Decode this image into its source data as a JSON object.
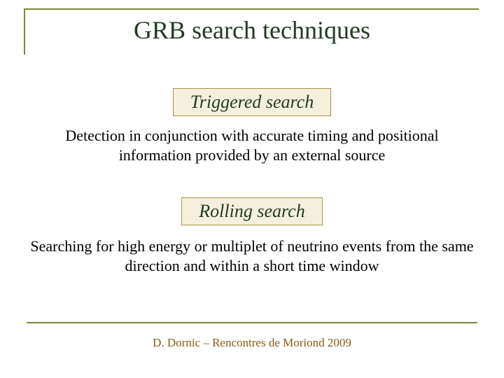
{
  "title": "GRB search techniques",
  "section1": {
    "heading": "Triggered search",
    "description": "Detection in conjunction with accurate timing and positional information provided by an external source"
  },
  "section2": {
    "heading": "Rolling search",
    "description": "Searching for high energy or multiplet of neutrino events from the same direction and within a short time window"
  },
  "footer": "D. Dornic – Rencontres de Moriond 2009",
  "colors": {
    "frame_border": "#7a8a3a",
    "title_text": "#1f3b1f",
    "box_border": "#a8904c",
    "box_bg": "#f5f0db",
    "body_text": "#000000",
    "footer_text": "#8a5a1a",
    "background": "#ffffff"
  },
  "typography": {
    "title_fontsize": 36,
    "section_heading_fontsize": 26,
    "description_fontsize": 22,
    "footer_fontsize": 17,
    "font_family": "Times New Roman"
  }
}
